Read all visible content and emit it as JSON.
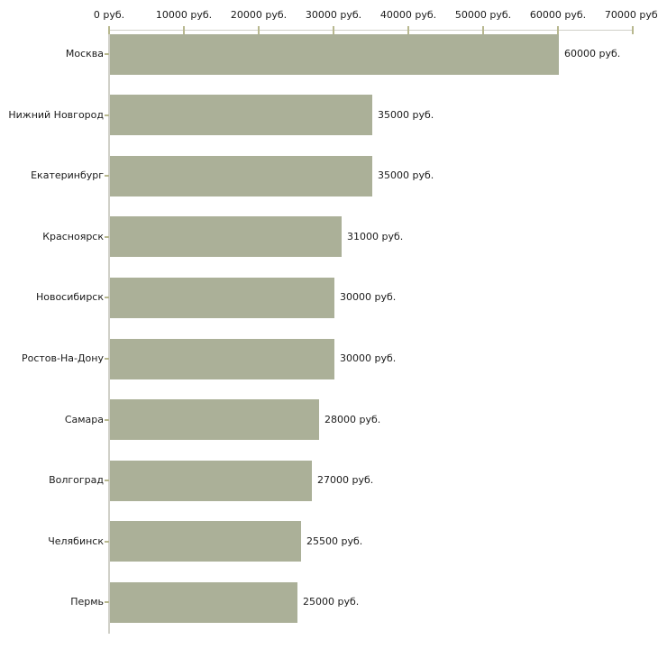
{
  "chart_data": {
    "type": "bar",
    "orientation": "horizontal",
    "title": "",
    "xlabel": "",
    "ylabel": "",
    "grid": false,
    "legend": false,
    "categories": [
      "Москва",
      "Нижний Новгород",
      "Екатеринбург",
      "Красноярск",
      "Новосибирск",
      "Ростов-На-Дону",
      "Самара",
      "Волгоград",
      "Челябинск",
      "Пермь"
    ],
    "values": [
      60000,
      35000,
      35000,
      31000,
      30000,
      30000,
      28000,
      27000,
      25500,
      25000
    ],
    "value_labels": [
      "60000 руб.",
      "35000 руб.",
      "35000 руб.",
      "31000 руб.",
      "30000 руб.",
      "30000 руб.",
      "28000 руб.",
      "27000 руб.",
      "25500 руб.",
      "25000 руб."
    ],
    "x_axis": {
      "position": "top",
      "min": 0,
      "max": 70000,
      "tick_step": 10000,
      "tick_labels": [
        "0 руб.",
        "10000 руб.",
        "20000 руб.",
        "30000 руб.",
        "40000 руб.",
        "50000 руб.",
        "60000 руб.",
        "70000 руб."
      ]
    },
    "colors": {
      "bar": "#abb098",
      "axis_line": "#d0d0c8",
      "tick_mark": "#b8b88f",
      "text": "#1a1a1a",
      "background": "#ffffff"
    }
  }
}
